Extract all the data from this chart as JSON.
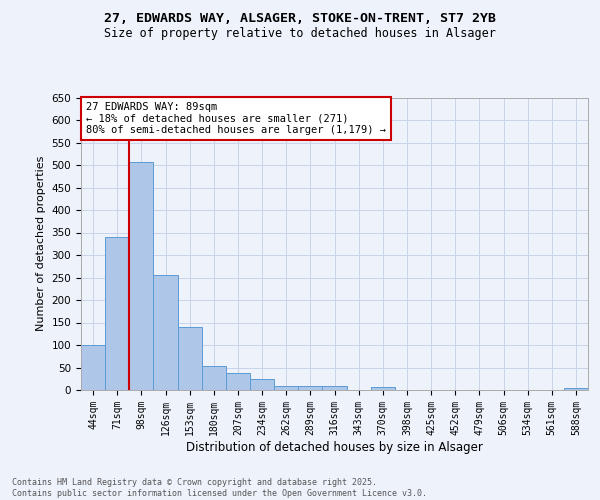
{
  "title_line1": "27, EDWARDS WAY, ALSAGER, STOKE-ON-TRENT, ST7 2YB",
  "title_line2": "Size of property relative to detached houses in Alsager",
  "xlabel": "Distribution of detached houses by size in Alsager",
  "ylabel": "Number of detached properties",
  "categories": [
    "44sqm",
    "71sqm",
    "98sqm",
    "126sqm",
    "153sqm",
    "180sqm",
    "207sqm",
    "234sqm",
    "262sqm",
    "289sqm",
    "316sqm",
    "343sqm",
    "370sqm",
    "398sqm",
    "425sqm",
    "452sqm",
    "479sqm",
    "506sqm",
    "534sqm",
    "561sqm",
    "588sqm"
  ],
  "values": [
    100,
    340,
    507,
    255,
    140,
    53,
    37,
    24,
    9,
    10,
    10,
    0,
    6,
    0,
    0,
    0,
    0,
    0,
    0,
    0,
    5
  ],
  "bar_color": "#aec6e8",
  "bar_edge_color": "#5b9bd5",
  "vline_color": "#cc0000",
  "annotation_text": "27 EDWARDS WAY: 89sqm\n← 18% of detached houses are smaller (271)\n80% of semi-detached houses are larger (1,179) →",
  "annotation_box_color": "#cc0000",
  "ylim": [
    0,
    650
  ],
  "yticks": [
    0,
    50,
    100,
    150,
    200,
    250,
    300,
    350,
    400,
    450,
    500,
    550,
    600,
    650
  ],
  "footer_text": "Contains HM Land Registry data © Crown copyright and database right 2025.\nContains public sector information licensed under the Open Government Licence v3.0.",
  "bg_color": "#eef2fb",
  "plot_bg_color": "#eef2fb",
  "grid_color": "#c8d4e8"
}
